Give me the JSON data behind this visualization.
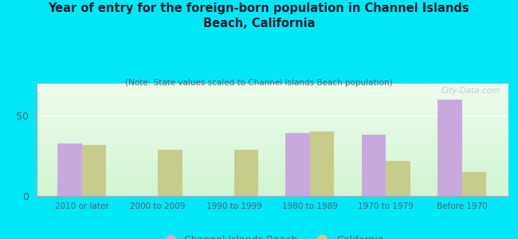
{
  "title": "Year of entry for the foreign-born population in Channel Islands\nBeach, California",
  "subtitle": "(Note: State values scaled to Channel Islands Beach population)",
  "categories": [
    "2010 or later",
    "2000 to 2009",
    "1990 to 1999",
    "1980 to 1989",
    "1970 to 1979",
    "Before 1970"
  ],
  "channel_islands_values": [
    33,
    0,
    0,
    39,
    38,
    60
  ],
  "california_values": [
    32,
    29,
    29,
    40,
    22,
    15
  ],
  "channel_islands_color": "#c9a8e0",
  "california_color": "#c8cc8a",
  "background_color": "#00e8f8",
  "title_color": "#1a1a2e",
  "subtitle_color": "#4a6070",
  "tick_color": "#4a6070",
  "ylim": [
    0,
    70
  ],
  "yticks": [
    0,
    50
  ],
  "watermark": "City-Data.com",
  "legend_label_1": "Channel Islands Beach",
  "legend_label_2": "California",
  "grid_color": "#ffffff",
  "spine_color": "#aaaaaa"
}
